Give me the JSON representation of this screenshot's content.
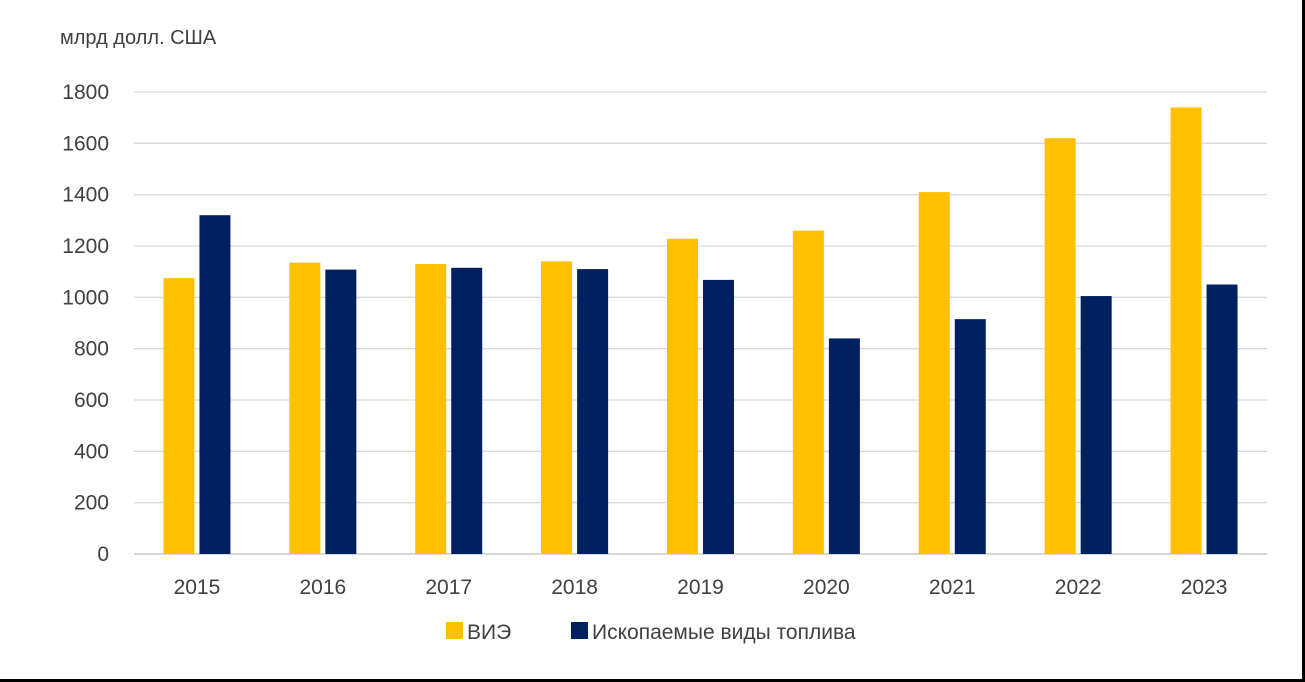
{
  "chart_data": {
    "type": "bar",
    "unit_label": "млрд долл. США",
    "categories": [
      "2015",
      "2016",
      "2017",
      "2018",
      "2019",
      "2020",
      "2021",
      "2022",
      "2023"
    ],
    "series": [
      {
        "name": "ВИЭ",
        "color": "#FFC000",
        "values": [
          1075,
          1135,
          1130,
          1140,
          1228,
          1260,
          1410,
          1620,
          1740
        ]
      },
      {
        "name": "Ископаемые виды топлива",
        "color": "#002060",
        "values": [
          1320,
          1108,
          1115,
          1110,
          1068,
          840,
          915,
          1005,
          1050
        ]
      }
    ],
    "ylim": [
      0,
      1800
    ],
    "yticks": [
      0,
      200,
      400,
      600,
      800,
      1000,
      1200,
      1400,
      1600,
      1800
    ],
    "grid": true,
    "legend_position": "bottom"
  }
}
